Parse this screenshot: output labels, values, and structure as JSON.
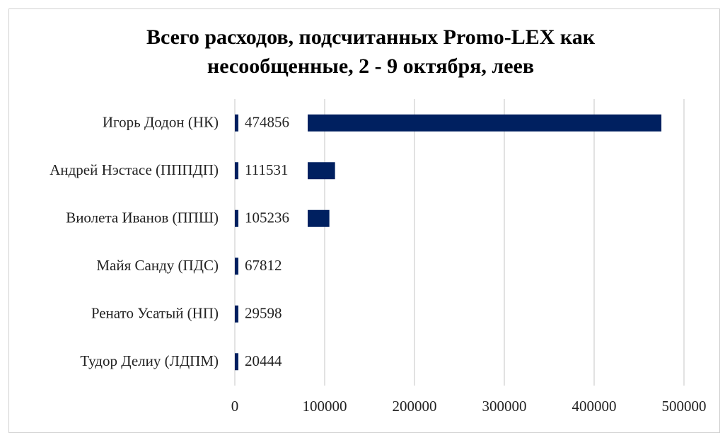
{
  "chart_data": {
    "type": "hbar",
    "title": "Всего расходов, подсчитанных Promo-LEX как несообщенные, 2 - 9 октября, леев",
    "categories": [
      "Игорь Додон (НК)",
      "Андрей Нэстасе (ПППДП)",
      "Виолета Иванов (ППШ)",
      "Майя Санду (ПДС)",
      "Ренато Усатый (НП)",
      "Тудор Делиу (ЛДПМ)"
    ],
    "values": [
      474856,
      111531,
      105236,
      67812,
      29598,
      20444
    ],
    "color": "#002060",
    "xlim": [
      0,
      500000
    ],
    "xticks": [
      0,
      100000,
      200000,
      300000,
      400000,
      500000
    ],
    "grid": true
  }
}
